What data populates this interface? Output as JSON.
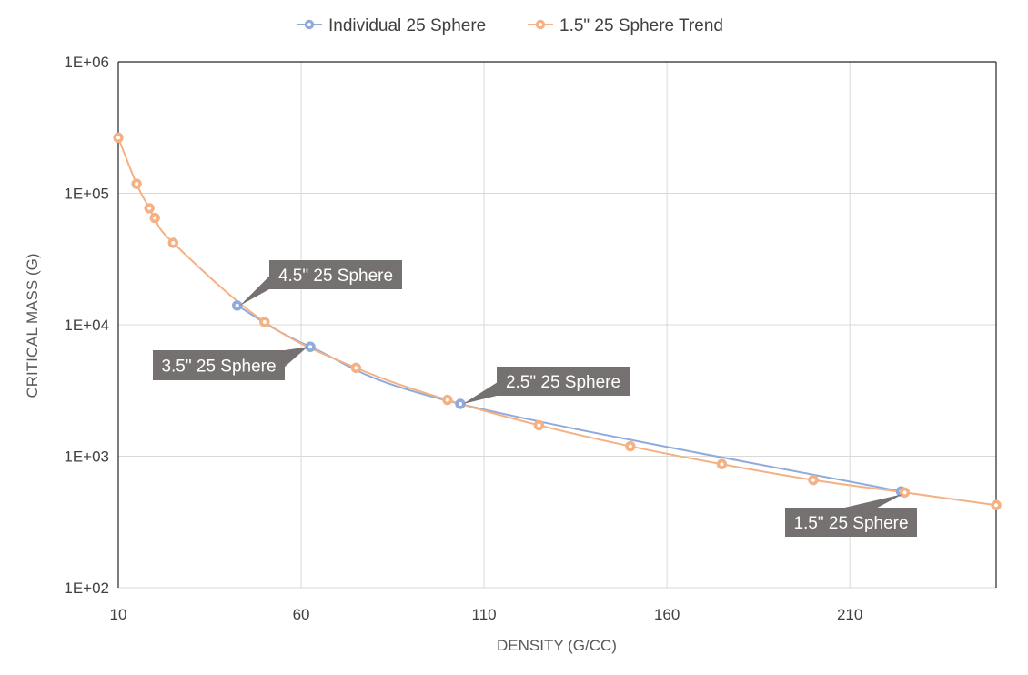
{
  "chart_data": {
    "type": "line",
    "title": "",
    "xlabel": "DENSITY (G/CC)",
    "ylabel": "CRITICAL MASS (G)",
    "xlim": [
      10,
      250
    ],
    "ylim": [
      100,
      1000000
    ],
    "y_scale": "log",
    "x_ticks": [
      10,
      60,
      110,
      160,
      210
    ],
    "x_tick_labels": [
      "10",
      "60",
      "110",
      "160",
      "210"
    ],
    "y_ticks": [
      100,
      1000,
      10000,
      100000,
      1000000
    ],
    "y_tick_labels": [
      "1E+02",
      "1E+03",
      "1E+04",
      "1E+05",
      "1E+06"
    ],
    "grid": true,
    "legend_position": "top",
    "series": [
      {
        "name": "Individual 25 Sphere",
        "color": "#8faadc",
        "points": [
          {
            "x": 42.5,
            "y": 14000
          },
          {
            "x": 62.5,
            "y": 6800
          },
          {
            "x": 103.5,
            "y": 2500
          },
          {
            "x": 224,
            "y": 540
          }
        ]
      },
      {
        "name": "1.5\" 25 Sphere Trend",
        "color": "#f4b183",
        "points": [
          {
            "x": 10,
            "y": 265000
          },
          {
            "x": 15,
            "y": 118000
          },
          {
            "x": 18.5,
            "y": 77000
          },
          {
            "x": 20,
            "y": 65000
          },
          {
            "x": 25,
            "y": 42000
          },
          {
            "x": 50,
            "y": 10500
          },
          {
            "x": 75,
            "y": 4700
          },
          {
            "x": 100,
            "y": 2680
          },
          {
            "x": 125,
            "y": 1720
          },
          {
            "x": 150,
            "y": 1190
          },
          {
            "x": 175,
            "y": 870
          },
          {
            "x": 200,
            "y": 660
          },
          {
            "x": 225,
            "y": 530
          },
          {
            "x": 250,
            "y": 425
          }
        ]
      }
    ],
    "annotations": [
      {
        "text": "4.5\" 25 Sphere",
        "x": 42.5,
        "y": 14000
      },
      {
        "text": "3.5\" 25 Sphere",
        "x": 62.5,
        "y": 6800
      },
      {
        "text": "2.5\" 25 Sphere",
        "x": 103.5,
        "y": 2500
      },
      {
        "text": "1.5\" 25 Sphere",
        "x": 224,
        "y": 540
      }
    ]
  }
}
